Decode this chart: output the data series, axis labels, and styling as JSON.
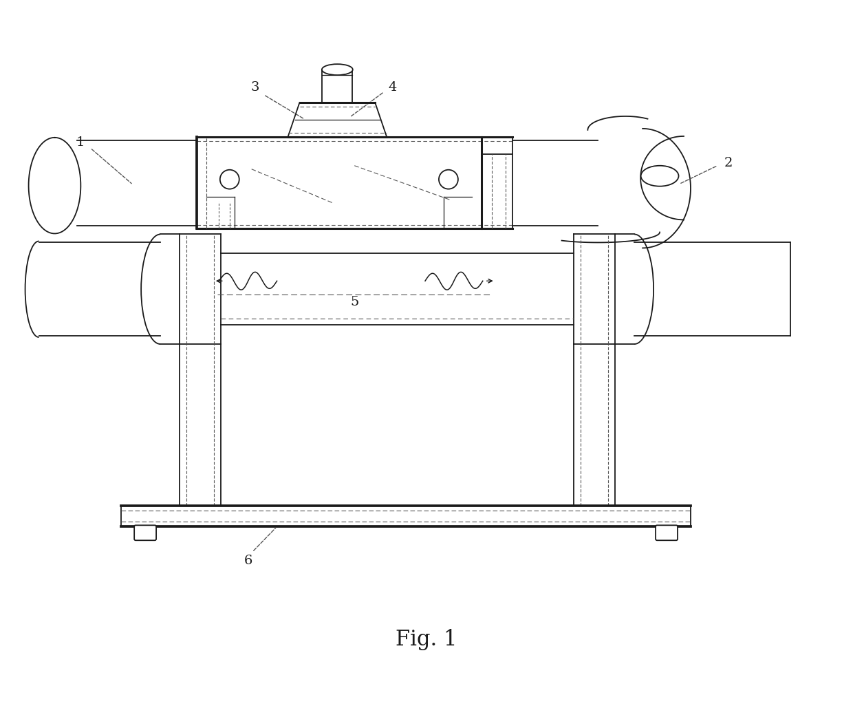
{
  "background_color": "#ffffff",
  "line_color": "#1a1a1a",
  "dashed_color": "#555555",
  "fig_caption": "Fig. 1",
  "lw_main": 1.3,
  "lw_thick": 2.2,
  "lw_thin": 0.9,
  "lw_dash": 0.8
}
